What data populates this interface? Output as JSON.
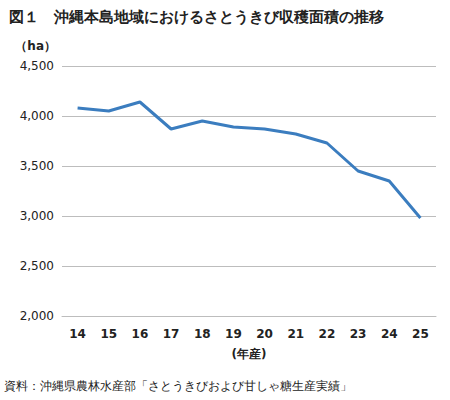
{
  "chart_data": {
    "type": "line",
    "title": "図１　沖縄本島地域におけるさとうきび収穫面積の推移",
    "ylabel": "（ha）",
    "xlabel": "(年産)",
    "source": "資料：沖縄県農林水産部「さとうきびおよび甘しゃ糖生産実績」",
    "categories": [
      "14",
      "15",
      "16",
      "17",
      "18",
      "19",
      "20",
      "21",
      "22",
      "23",
      "24",
      "25"
    ],
    "values": [
      4080,
      4050,
      4140,
      3870,
      3950,
      3890,
      3870,
      3820,
      3730,
      3450,
      3350,
      2980
    ],
    "color": "#3b7dbf",
    "ylim": [
      2000,
      4500
    ],
    "yticks": [
      {
        "value": 2000,
        "label": "2,000"
      },
      {
        "value": 2500,
        "label": "2,500"
      },
      {
        "value": 3000,
        "label": "3,000"
      },
      {
        "value": 3500,
        "label": "3,500"
      },
      {
        "value": 4000,
        "label": "4,000"
      },
      {
        "value": 4500,
        "label": "4,500"
      }
    ],
    "grid": true
  }
}
